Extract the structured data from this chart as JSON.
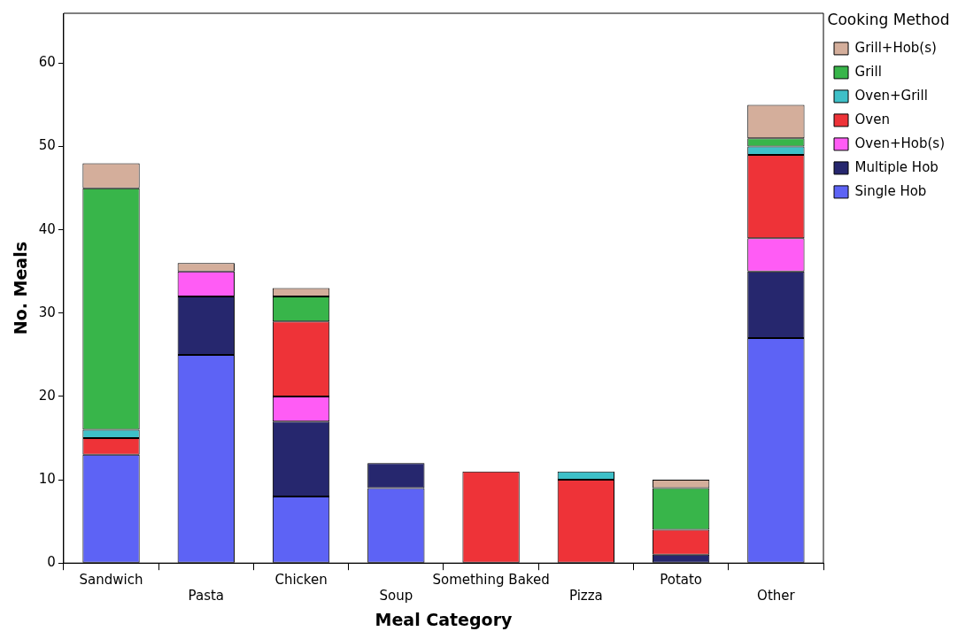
{
  "chart_data": {
    "type": "bar",
    "stacked": true,
    "xlabel": "Meal Category",
    "ylabel": "No. Meals",
    "legend_title": "Cooking Method",
    "legend": "right",
    "categories": [
      "Sandwich",
      "Pasta",
      "Chicken",
      "Soup",
      "Something Baked",
      "Pizza",
      "Potato",
      "Other"
    ],
    "ylim": [
      0,
      66
    ],
    "yticks": [
      0,
      10,
      20,
      30,
      40,
      50,
      60
    ],
    "grid": false,
    "series": [
      {
        "name": "Single Hob",
        "color": "#5d63f5",
        "values": [
          13,
          25,
          8,
          9,
          0,
          0,
          0,
          27
        ]
      },
      {
        "name": "Multiple Hob",
        "color": "#26276e",
        "values": [
          0,
          7,
          9,
          3,
          0,
          0,
          1,
          8
        ]
      },
      {
        "name": "Oven+Hob(s)",
        "color": "#ff5cf5",
        "values": [
          0,
          3,
          3,
          0,
          0,
          0,
          0,
          4
        ]
      },
      {
        "name": "Oven",
        "color": "#ee3338",
        "values": [
          2,
          0,
          9,
          0,
          11,
          10,
          3,
          10
        ]
      },
      {
        "name": "Oven+Grill",
        "color": "#3ec0c8",
        "values": [
          1,
          0,
          0,
          0,
          0,
          1,
          0,
          1
        ]
      },
      {
        "name": "Grill",
        "color": "#38b54a",
        "values": [
          29,
          0,
          3,
          0,
          0,
          0,
          5,
          1
        ]
      },
      {
        "name": "Grill+Hob(s)",
        "color": "#d4ae9b",
        "values": [
          3,
          1,
          1,
          0,
          0,
          0,
          1,
          4
        ]
      }
    ]
  }
}
